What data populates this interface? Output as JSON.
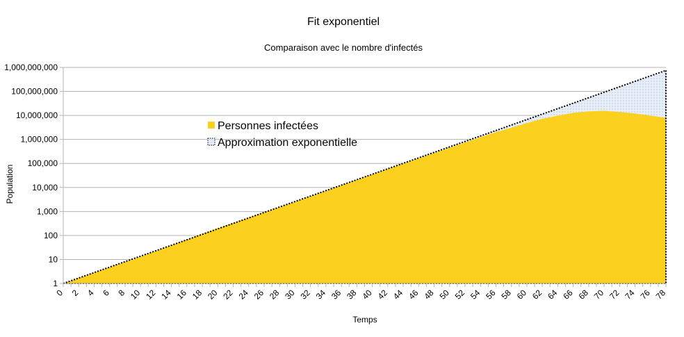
{
  "chart_data": {
    "type": "area",
    "title": "Fit exponentiel",
    "subtitle": "Comparaison avec le nombre d'infectés",
    "xlabel": "Temps",
    "ylabel": "Population",
    "yscale": "log",
    "ylim": [
      1,
      1000000000
    ],
    "xlim": [
      0,
      78
    ],
    "grid": true,
    "legend_placement": "top-center",
    "x_ticks": [
      "0",
      "2",
      "4",
      "6",
      "8",
      "10",
      "12",
      "14",
      "16",
      "18",
      "20",
      "22",
      "24",
      "26",
      "28",
      "30",
      "32",
      "34",
      "36",
      "38",
      "40",
      "42",
      "44",
      "46",
      "48",
      "50",
      "52",
      "54",
      "56",
      "58",
      "60",
      "62",
      "64",
      "66",
      "68",
      "70",
      "72",
      "74",
      "76",
      "78"
    ],
    "y_ticks": [
      {
        "value": 1,
        "label": "1"
      },
      {
        "value": 10,
        "label": "10"
      },
      {
        "value": 100,
        "label": "100"
      },
      {
        "value": 1000,
        "label": "1,000"
      },
      {
        "value": 10000,
        "label": "10,000"
      },
      {
        "value": 100000,
        "label": "100,000"
      },
      {
        "value": 1000000,
        "label": "1,000,000"
      },
      {
        "value": 10000000,
        "label": "10,000,000"
      },
      {
        "value": 100000000,
        "label": "100,000,000"
      },
      {
        "value": 1000000000,
        "label": "1,000,000,000"
      }
    ],
    "series": [
      {
        "name": "Personnes  infectées",
        "color": "#fcd01f",
        "x": [
          0,
          10,
          20,
          30,
          40,
          50,
          55,
          60,
          62,
          64,
          66,
          68,
          70,
          72,
          74,
          76,
          78
        ],
        "y": [
          1,
          13,
          200,
          2500,
          35000,
          450000,
          1600000,
          4800000,
          7200000,
          9800000,
          12800000,
          14800000,
          15500000,
          14000000,
          12000000,
          9800000,
          8000000
        ]
      },
      {
        "name": "Approximation exponentielle",
        "color": "#dce6f2",
        "x": [
          0,
          78
        ],
        "y": [
          1,
          750000000
        ]
      }
    ]
  }
}
